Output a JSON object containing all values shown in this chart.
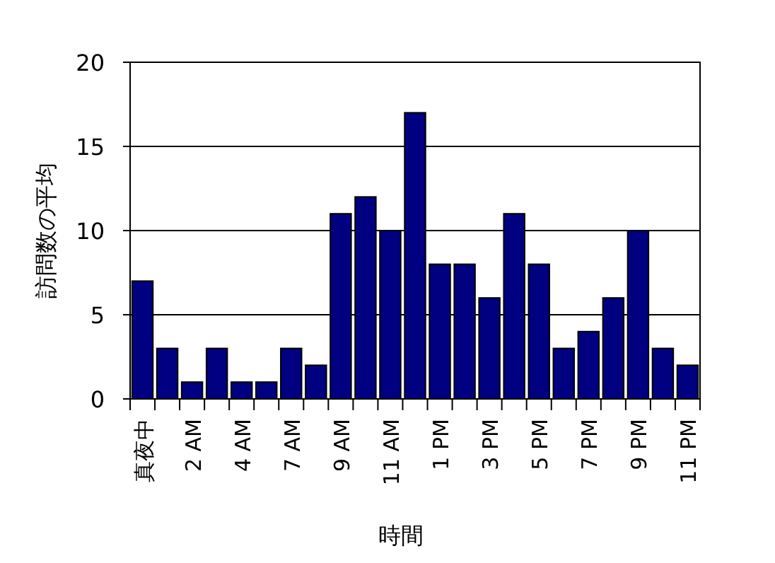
{
  "chart_data": {
    "type": "bar",
    "xlabel": "時間",
    "ylabel": "訪問数の平均",
    "categories": [
      "真夜中",
      null,
      "2 AM",
      null,
      "4 AM",
      null,
      "7 AM",
      null,
      "9 AM",
      null,
      "11 AM",
      null,
      "1 PM",
      null,
      "3 PM",
      null,
      "5 PM",
      null,
      "7 PM",
      null,
      "9 PM",
      null,
      "11 PM"
    ],
    "values": [
      7,
      3,
      1,
      3,
      1,
      1,
      3,
      2,
      11,
      12,
      10,
      17,
      8,
      8,
      6,
      11,
      8,
      3,
      4,
      6,
      10,
      3,
      2
    ],
    "color": "#000080",
    "ylim": [
      0,
      20
    ],
    "yticks": [
      0,
      5,
      10,
      15,
      20
    ],
    "grid": "y"
  }
}
